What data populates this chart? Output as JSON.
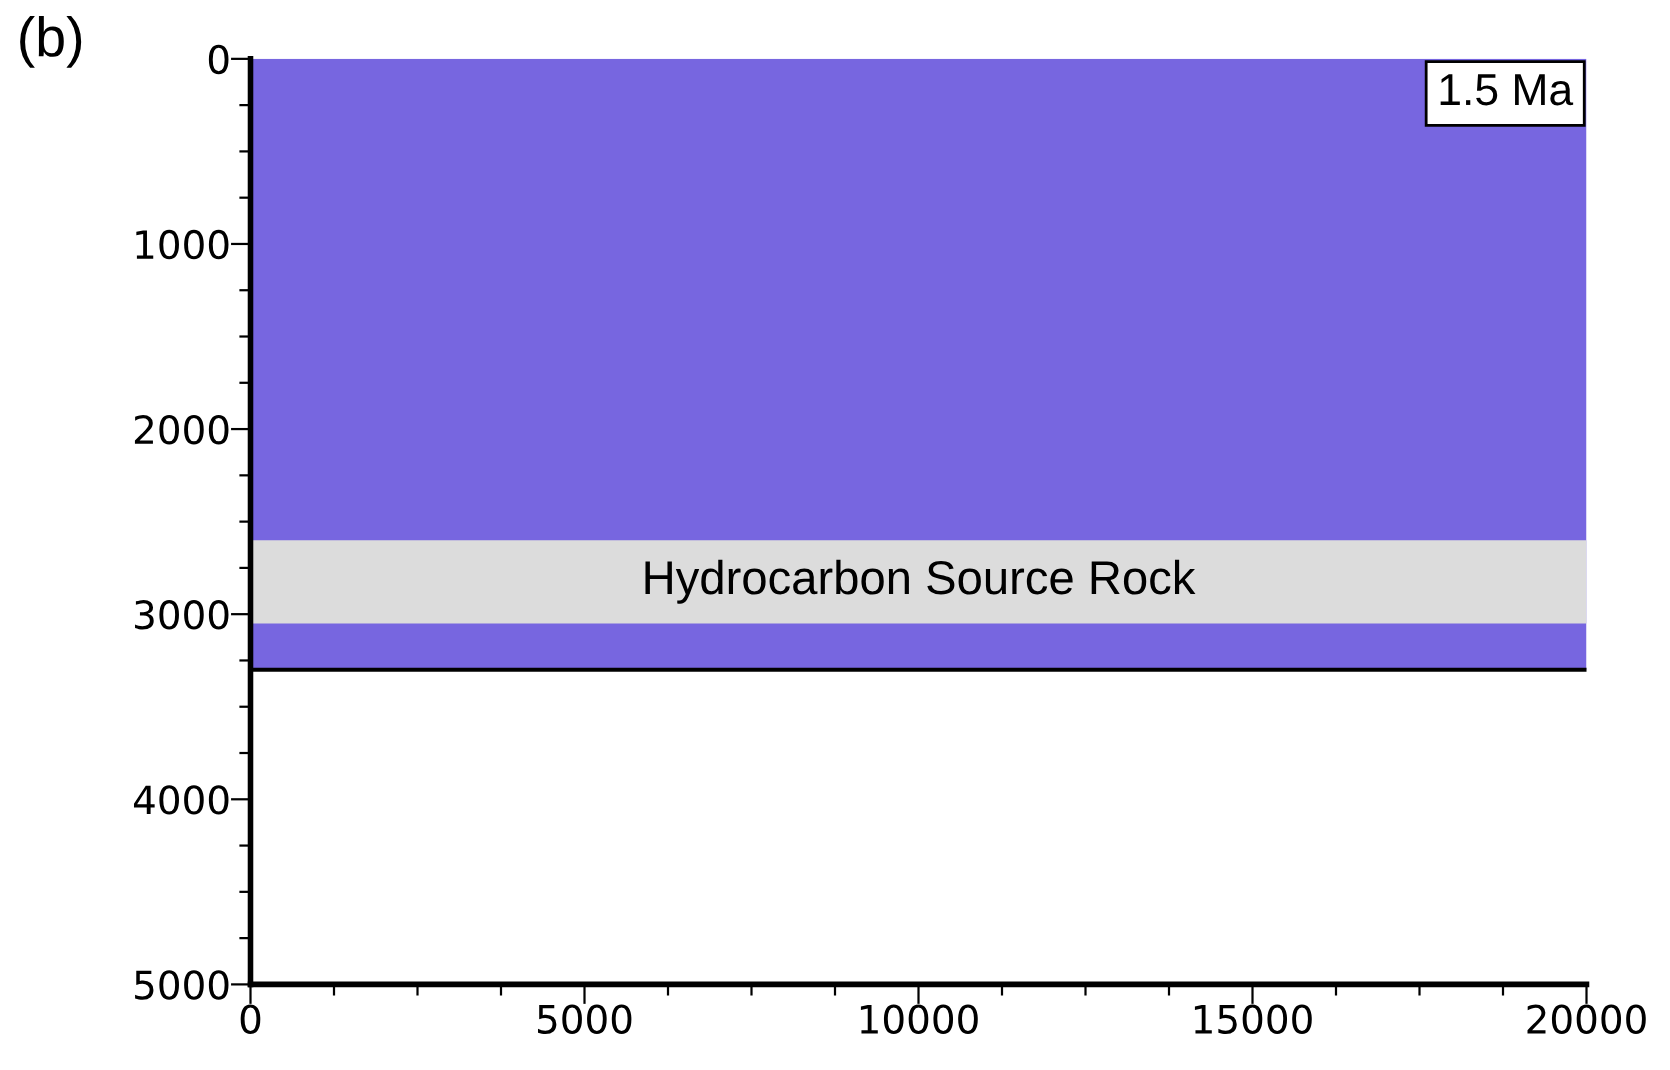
{
  "chart_data": {
    "type": "area",
    "title": "(b)",
    "x": [
      0,
      20000
    ],
    "series": [
      {
        "color": "#7766e0",
        "values": [
          3300,
          3300
        ]
      }
    ],
    "xlim": [
      0,
      20000
    ],
    "ylim": [
      5000,
      0
    ],
    "xticks": [
      0,
      {
        "value": 1250,
        "label": null
      },
      {
        "value": 2500,
        "label": null
      },
      {
        "value": 3750,
        "label": null
      },
      5000,
      {
        "value": 6250,
        "label": null
      },
      {
        "value": 7500,
        "label": null
      },
      {
        "value": 8750,
        "label": null
      },
      10000,
      {
        "value": 11250,
        "label": null
      },
      {
        "value": 12500,
        "label": null
      },
      {
        "value": 13750,
        "label": null
      },
      15000,
      {
        "value": 16250,
        "label": null
      },
      {
        "value": 17500,
        "label": null
      },
      {
        "value": 18750,
        "label": null
      },
      20000
    ],
    "yticks": [
      0,
      {
        "value": 250,
        "label": null
      },
      {
        "value": 500,
        "label": null
      },
      {
        "value": 750,
        "label": null
      },
      1000,
      {
        "value": 1250,
        "label": null
      },
      {
        "value": 1500,
        "label": null
      },
      {
        "value": 1750,
        "label": null
      },
      2000,
      {
        "value": 2250,
        "label": null
      },
      {
        "value": 2500,
        "label": null
      },
      {
        "value": 2750,
        "label": null
      },
      3000,
      {
        "value": 3250,
        "label": null
      },
      {
        "value": 3500,
        "label": null
      },
      {
        "value": 3750,
        "label": null
      },
      4000,
      {
        "value": 4250,
        "label": null
      },
      {
        "value": 4500,
        "label": null
      },
      {
        "value": 4750,
        "label": null
      },
      5000
    ],
    "bands": [
      {
        "axis": "y",
        "from": 2600,
        "to": 3050,
        "label": "Hydrocarbon Source Rock",
        "color": "#dcdcdc"
      }
    ],
    "annotations": [
      "1.5 Ma"
    ],
    "grid": false
  }
}
